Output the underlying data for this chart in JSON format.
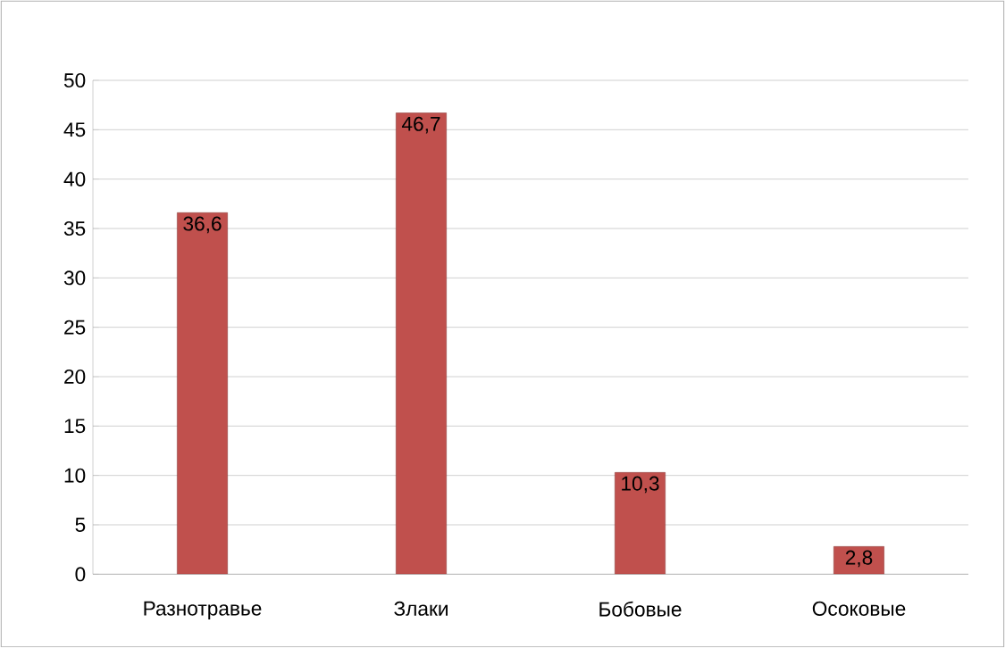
{
  "chart_data": {
    "type": "bar",
    "categories": [
      "Разнотравье",
      "Злаки",
      "Бобовые",
      "Осоковые"
    ],
    "values": [
      36.6,
      46.7,
      10.3,
      2.8
    ],
    "value_labels": [
      "36,6",
      "46,7",
      "10,3",
      "2,8"
    ],
    "color": "#c0504d",
    "ylim": [
      0,
      50
    ],
    "yticks": [
      0,
      5,
      10,
      15,
      20,
      25,
      30,
      35,
      40,
      45,
      50
    ],
    "grid": "y"
  }
}
